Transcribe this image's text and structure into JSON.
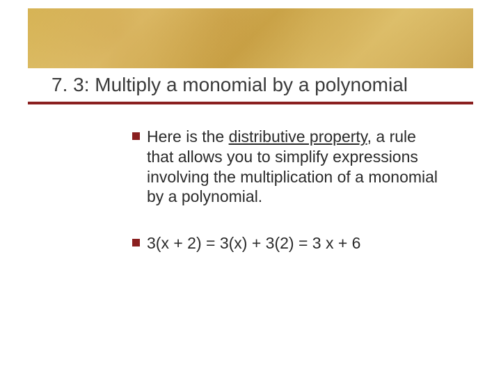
{
  "slide": {
    "title": "7. 3: Multiply a monomial by a polynomial",
    "banner": {
      "colors": [
        "#d9b95a",
        "#e4c978",
        "#c9a448",
        "#e0c472",
        "#caa550"
      ]
    },
    "rule_color": "#8a1f1f",
    "bullet_color": "#8a1f1f",
    "background_color": "#ffffff",
    "title_fontsize": 28,
    "body_fontsize": 23,
    "bullets": [
      {
        "pre": "Here is the ",
        "underlined": "distributive property",
        "post": ", a rule that allows you to simplify expressions involving the multiplication of a monomial by a polynomial."
      },
      {
        "pre": "3(x + 2) = 3(x) + 3(2) = 3 x + 6",
        "underlined": "",
        "post": ""
      }
    ]
  }
}
